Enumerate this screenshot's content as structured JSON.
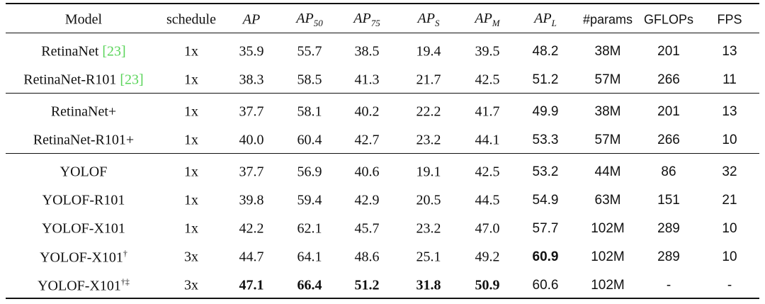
{
  "table": {
    "header": [
      {
        "text": "Model"
      },
      {
        "text": "schedule"
      },
      {
        "text": "AP",
        "italic": true
      },
      {
        "text": "AP",
        "sub": "50",
        "italic": true
      },
      {
        "text": "AP",
        "sub": "75",
        "italic": true
      },
      {
        "text": "AP",
        "sub": "S",
        "italic": true
      },
      {
        "text": "AP",
        "sub": "M",
        "italic": true
      },
      {
        "text": "AP",
        "sub": "L",
        "italic": true
      },
      {
        "text": "#params",
        "sans": true
      },
      {
        "text": "GFLOPs",
        "sans": true
      },
      {
        "text": "FPS",
        "sans": true
      }
    ],
    "groups": [
      [
        {
          "model": "RetinaNet",
          "cite": "[23]",
          "cells": [
            "1x",
            "35.9",
            "55.7",
            "38.5",
            "19.4",
            "39.5",
            "48.2",
            "38M",
            "201",
            "13"
          ]
        },
        {
          "model": "RetinaNet-R101",
          "cite": "[23]",
          "cells": [
            "1x",
            "38.3",
            "58.5",
            "41.3",
            "21.7",
            "42.5",
            "51.2",
            "57M",
            "266",
            "11"
          ]
        }
      ],
      [
        {
          "model": "RetinaNet+",
          "cells": [
            "1x",
            "37.7",
            "58.1",
            "40.2",
            "22.2",
            "41.7",
            "49.9",
            "38M",
            "201",
            "13"
          ]
        },
        {
          "model": "RetinaNet-R101+",
          "cells": [
            "1x",
            "40.0",
            "60.4",
            "42.7",
            "23.2",
            "44.1",
            "53.3",
            "57M",
            "266",
            "10"
          ]
        }
      ],
      [
        {
          "model": "YOLOF",
          "cells": [
            "1x",
            "37.7",
            "56.9",
            "40.6",
            "19.1",
            "42.5",
            "53.2",
            "44M",
            "86",
            "32"
          ]
        },
        {
          "model": "YOLOF-R101",
          "cells": [
            "1x",
            "39.8",
            "59.4",
            "42.9",
            "20.5",
            "44.5",
            "54.9",
            "63M",
            "151",
            "21"
          ]
        },
        {
          "model": "YOLOF-X101",
          "cells": [
            "1x",
            "42.2",
            "62.1",
            "45.7",
            "23.2",
            "47.0",
            "57.7",
            "102M",
            "289",
            "10"
          ]
        },
        {
          "model": "YOLOF-X101",
          "sup": "†",
          "cells": [
            "3x",
            "44.7",
            "64.1",
            "48.6",
            "25.1",
            "49.2",
            "60.9",
            "102M",
            "289",
            "10"
          ],
          "bold": [
            6
          ]
        },
        {
          "model": "YOLOF-X101",
          "sup": "†‡",
          "cells": [
            "3x",
            "47.1",
            "66.4",
            "51.2",
            "31.8",
            "50.9",
            "60.6",
            "102M",
            "-",
            "-"
          ],
          "bold": [
            1,
            2,
            3,
            4,
            5
          ]
        }
      ]
    ]
  }
}
